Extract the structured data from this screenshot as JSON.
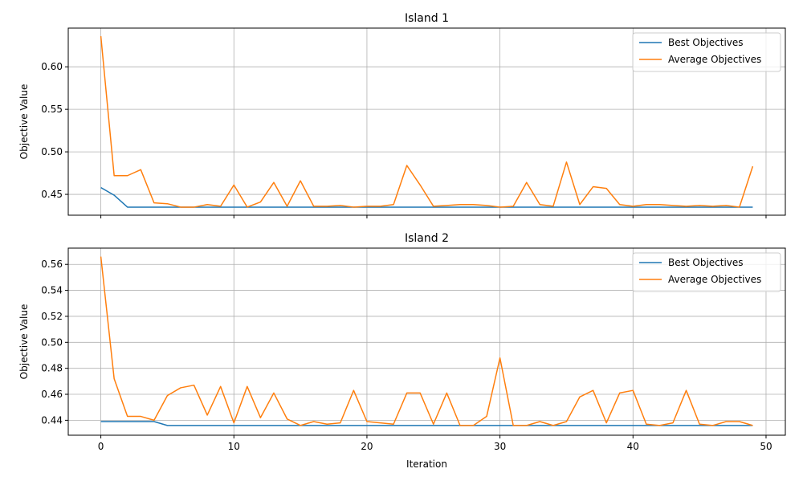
{
  "colors": {
    "best": "#1f77b4",
    "average": "#ff7f0e",
    "grid": "#b0b0b0",
    "axis": "#000000"
  },
  "chart_data": [
    {
      "type": "line",
      "title": "Island 1",
      "xlabel": "",
      "ylabel": "Objective Value",
      "xlim": [
        -2.45,
        51.45
      ],
      "ylim": [
        0.4255,
        0.6455
      ],
      "xticks": [
        0,
        10,
        20,
        30,
        40,
        50
      ],
      "xticklabels": [],
      "yticks": [
        0.45,
        0.5,
        0.55,
        0.6
      ],
      "yticklabels": [
        "0.45",
        "0.50",
        "0.55",
        "0.60"
      ],
      "grid": true,
      "legend_position": "top-right",
      "series": [
        {
          "name": "Best Objectives",
          "x": [
            0,
            1,
            2,
            3,
            4,
            5,
            6,
            7,
            8,
            9,
            10,
            11,
            12,
            13,
            14,
            15,
            16,
            17,
            18,
            19,
            20,
            21,
            22,
            23,
            24,
            25,
            26,
            27,
            28,
            29,
            30,
            31,
            32,
            33,
            34,
            35,
            36,
            37,
            38,
            39,
            40,
            41,
            42,
            43,
            44,
            45,
            46,
            47,
            48,
            49
          ],
          "values": [
            0.458,
            0.449,
            0.435,
            0.435,
            0.435,
            0.435,
            0.435,
            0.435,
            0.435,
            0.435,
            0.435,
            0.435,
            0.435,
            0.435,
            0.435,
            0.435,
            0.435,
            0.435,
            0.435,
            0.435,
            0.435,
            0.435,
            0.435,
            0.435,
            0.435,
            0.435,
            0.435,
            0.435,
            0.435,
            0.435,
            0.435,
            0.435,
            0.435,
            0.435,
            0.435,
            0.435,
            0.435,
            0.435,
            0.435,
            0.435,
            0.435,
            0.435,
            0.435,
            0.435,
            0.435,
            0.435,
            0.435,
            0.435,
            0.435,
            0.435
          ]
        },
        {
          "name": "Average Objectives",
          "x": [
            0,
            1,
            2,
            3,
            4,
            5,
            6,
            7,
            8,
            9,
            10,
            11,
            12,
            13,
            14,
            15,
            16,
            17,
            18,
            19,
            20,
            21,
            22,
            23,
            24,
            25,
            26,
            27,
            28,
            29,
            30,
            31,
            32,
            33,
            34,
            35,
            36,
            37,
            38,
            39,
            40,
            41,
            42,
            43,
            44,
            45,
            46,
            47,
            48,
            49
          ],
          "values": [
            0.636,
            0.472,
            0.472,
            0.479,
            0.44,
            0.439,
            0.435,
            0.435,
            0.438,
            0.436,
            0.461,
            0.435,
            0.441,
            0.464,
            0.436,
            0.466,
            0.436,
            0.436,
            0.437,
            0.435,
            0.436,
            0.436,
            0.438,
            0.484,
            0.461,
            0.436,
            0.437,
            0.438,
            0.438,
            0.437,
            0.435,
            0.436,
            0.464,
            0.438,
            0.436,
            0.488,
            0.438,
            0.459,
            0.457,
            0.438,
            0.436,
            0.438,
            0.438,
            0.437,
            0.436,
            0.437,
            0.436,
            0.437,
            0.435,
            0.483
          ]
        }
      ]
    },
    {
      "type": "line",
      "title": "Island 2",
      "xlabel": "Iteration",
      "ylabel": "Objective Value",
      "xlim": [
        -2.45,
        51.45
      ],
      "ylim": [
        0.4285,
        0.5725
      ],
      "xticks": [
        0,
        10,
        20,
        30,
        40,
        50
      ],
      "xticklabels": [
        "0",
        "10",
        "20",
        "30",
        "40",
        "50"
      ],
      "yticks": [
        0.44,
        0.46,
        0.48,
        0.5,
        0.52,
        0.54,
        0.56
      ],
      "yticklabels": [
        "0.44",
        "0.46",
        "0.48",
        "0.50",
        "0.52",
        "0.54",
        "0.56"
      ],
      "grid": true,
      "legend_position": "top-right",
      "series": [
        {
          "name": "Best Objectives",
          "x": [
            0,
            1,
            2,
            3,
            4,
            5,
            6,
            7,
            8,
            9,
            10,
            11,
            12,
            13,
            14,
            15,
            16,
            17,
            18,
            19,
            20,
            21,
            22,
            23,
            24,
            25,
            26,
            27,
            28,
            29,
            30,
            31,
            32,
            33,
            34,
            35,
            36,
            37,
            38,
            39,
            40,
            41,
            42,
            43,
            44,
            45,
            46,
            47,
            48,
            49
          ],
          "values": [
            0.439,
            0.439,
            0.439,
            0.439,
            0.439,
            0.436,
            0.436,
            0.436,
            0.436,
            0.436,
            0.436,
            0.436,
            0.436,
            0.436,
            0.436,
            0.436,
            0.436,
            0.436,
            0.436,
            0.436,
            0.436,
            0.436,
            0.436,
            0.436,
            0.436,
            0.436,
            0.436,
            0.436,
            0.436,
            0.436,
            0.436,
            0.436,
            0.436,
            0.436,
            0.436,
            0.436,
            0.436,
            0.436,
            0.436,
            0.436,
            0.436,
            0.436,
            0.436,
            0.436,
            0.436,
            0.436,
            0.436,
            0.436,
            0.436,
            0.436
          ]
        },
        {
          "name": "Average Objectives",
          "x": [
            0,
            1,
            2,
            3,
            4,
            5,
            6,
            7,
            8,
            9,
            10,
            11,
            12,
            13,
            14,
            15,
            16,
            17,
            18,
            19,
            20,
            21,
            22,
            23,
            24,
            25,
            26,
            27,
            28,
            29,
            30,
            31,
            32,
            33,
            34,
            35,
            36,
            37,
            38,
            39,
            40,
            41,
            42,
            43,
            44,
            45,
            46,
            47,
            48,
            49
          ],
          "values": [
            0.566,
            0.472,
            0.443,
            0.443,
            0.44,
            0.459,
            0.465,
            0.467,
            0.444,
            0.466,
            0.438,
            0.466,
            0.442,
            0.461,
            0.441,
            0.436,
            0.439,
            0.437,
            0.438,
            0.463,
            0.439,
            0.438,
            0.437,
            0.461,
            0.461,
            0.437,
            0.461,
            0.436,
            0.436,
            0.443,
            0.488,
            0.436,
            0.436,
            0.439,
            0.436,
            0.439,
            0.458,
            0.463,
            0.438,
            0.461,
            0.463,
            0.437,
            0.436,
            0.438,
            0.463,
            0.437,
            0.436,
            0.439,
            0.439,
            0.436
          ]
        }
      ]
    }
  ]
}
